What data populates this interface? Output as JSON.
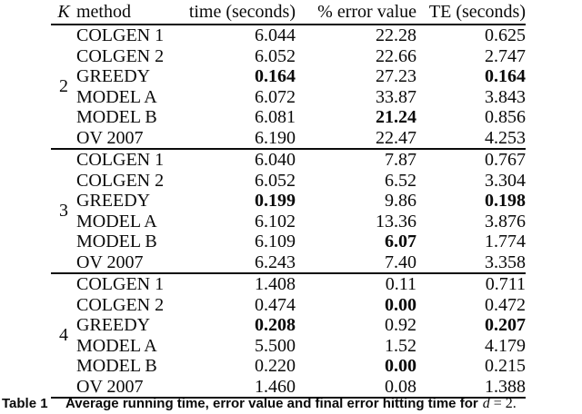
{
  "table": {
    "headers": {
      "k": "K",
      "method": "method",
      "time": "time (seconds)",
      "error": "% error value",
      "te": "TE (seconds)"
    },
    "groups": [
      {
        "k": "2",
        "rows": [
          {
            "method": "COLGEN 1",
            "time": "6.044",
            "error": "22.28",
            "te": "0.625"
          },
          {
            "method": "COLGEN 2",
            "time": "6.052",
            "error": "22.66",
            "te": "2.747"
          },
          {
            "method": "GREEDY",
            "time": "0.164",
            "error": "27.23",
            "te": "0.164",
            "time_bold": true,
            "te_bold": true
          },
          {
            "method": "MODEL A",
            "time": "6.072",
            "error": "33.87",
            "te": "3.843"
          },
          {
            "method": "MODEL B",
            "time": "6.081",
            "error": "21.24",
            "te": "0.856",
            "error_bold": true
          },
          {
            "method": "OV 2007",
            "time": "6.190",
            "error": "22.47",
            "te": "4.253"
          }
        ]
      },
      {
        "k": "3",
        "rows": [
          {
            "method": "COLGEN 1",
            "time": "6.040",
            "error": "7.87",
            "te": "0.767"
          },
          {
            "method": "COLGEN 2",
            "time": "6.052",
            "error": "6.52",
            "te": "3.304"
          },
          {
            "method": "GREEDY",
            "time": "0.199",
            "error": "9.86",
            "te": "0.198",
            "time_bold": true,
            "te_bold": true
          },
          {
            "method": "MODEL A",
            "time": "6.102",
            "error": "13.36",
            "te": "3.876"
          },
          {
            "method": "MODEL B",
            "time": "6.109",
            "error": "6.07",
            "te": "1.774",
            "error_bold": true
          },
          {
            "method": "OV 2007",
            "time": "6.243",
            "error": "7.40",
            "te": "3.358"
          }
        ]
      },
      {
        "k": "4",
        "rows": [
          {
            "method": "COLGEN 1",
            "time": "1.408",
            "error": "0.11",
            "te": "0.711"
          },
          {
            "method": "COLGEN 2",
            "time": "0.474",
            "error": "0.00",
            "te": "0.472",
            "error_bold": true
          },
          {
            "method": "GREEDY",
            "time": "0.208",
            "error": "0.92",
            "te": "0.207",
            "time_bold": true,
            "te_bold": true
          },
          {
            "method": "MODEL A",
            "time": "5.500",
            "error": "1.52",
            "te": "4.179"
          },
          {
            "method": "MODEL B",
            "time": "0.220",
            "error": "0.00",
            "te": "0.215",
            "error_bold": true
          },
          {
            "method": "OV 2007",
            "time": "1.460",
            "error": "0.08",
            "te": "1.388"
          }
        ]
      }
    ]
  },
  "caption": {
    "label": "Table 1",
    "text": "Average running time, error value and final error hitting time for",
    "variable": "d",
    "suffix": "= 2."
  }
}
